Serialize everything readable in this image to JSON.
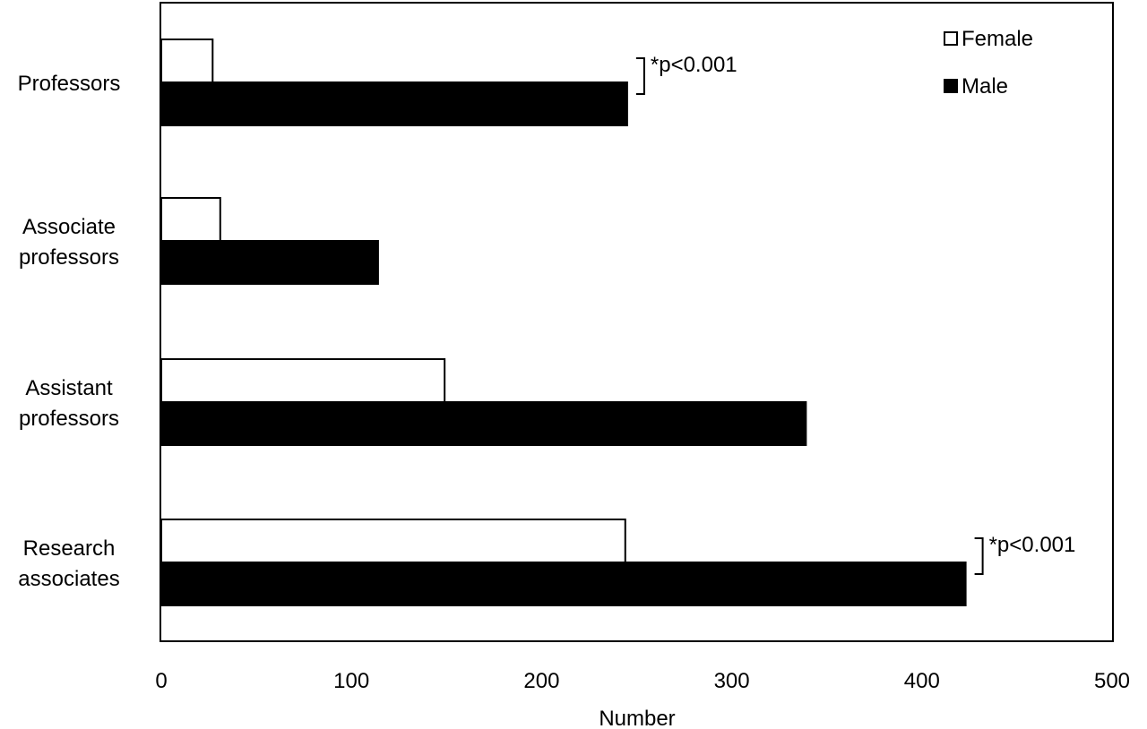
{
  "chart_data": {
    "type": "bar",
    "orientation": "horizontal",
    "categories": [
      [
        "Professors"
      ],
      [
        "Associate",
        "professors"
      ],
      [
        "Assistant",
        "professors"
      ],
      [
        "Research",
        "associates"
      ]
    ],
    "series": [
      {
        "name": "Female",
        "values": [
          27,
          31,
          149,
          244
        ],
        "fill": "#ffffff",
        "stroke": "#000000"
      },
      {
        "name": "Male",
        "values": [
          245,
          114,
          339,
          423
        ],
        "fill": "#000000",
        "stroke": "#000000"
      }
    ],
    "xlabel": "Number",
    "xlim": [
      0,
      500
    ],
    "xticks": [
      "0",
      "100",
      "200",
      "300",
      "400",
      "500"
    ],
    "grid": false,
    "legend": "top-right",
    "annotations": [
      {
        "category_index": 0,
        "text": "*p<0.001"
      },
      {
        "category_index": 3,
        "text": "*p<0.001"
      }
    ]
  }
}
